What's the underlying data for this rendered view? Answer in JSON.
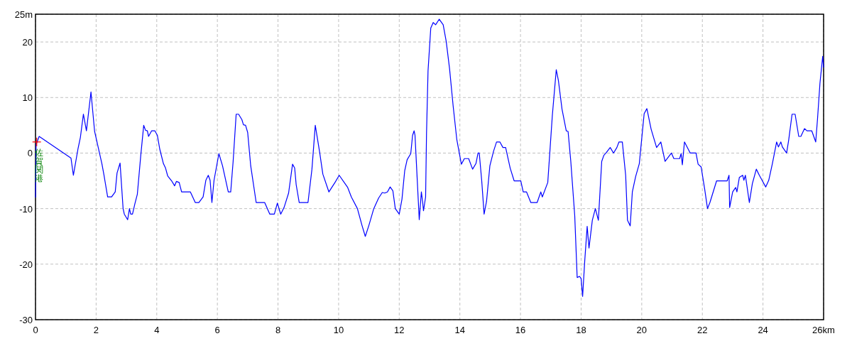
{
  "chart_data": {
    "type": "line",
    "x": [
      0,
      0.02,
      0.12,
      1.17,
      1.25,
      1.4,
      1.48,
      1.58,
      1.68,
      1.83,
      1.95,
      2.19,
      2.26,
      2.38,
      2.51,
      2.63,
      2.69,
      2.79,
      2.89,
      2.93,
      3.04,
      3.1,
      3.14,
      3.2,
      3.28,
      3.36,
      3.47,
      3.57,
      3.63,
      3.69,
      3.73,
      3.83,
      3.94,
      4.02,
      4.1,
      4.22,
      4.29,
      4.36,
      4.49,
      4.59,
      4.65,
      4.74,
      4.82,
      5.11,
      5.27,
      5.39,
      5.53,
      5.62,
      5.7,
      5.76,
      5.82,
      5.89,
      6.05,
      6.17,
      6.36,
      6.44,
      6.52,
      6.62,
      6.7,
      6.81,
      6.86,
      6.93,
      7.0,
      7.1,
      7.28,
      7.56,
      7.73,
      7.88,
      7.98,
      8.09,
      8.2,
      8.35,
      8.48,
      8.55,
      8.6,
      8.7,
      8.99,
      9.12,
      9.23,
      9.37,
      9.48,
      9.68,
      9.88,
      10.02,
      10.3,
      10.42,
      10.62,
      10.77,
      10.88,
      11.0,
      11.16,
      11.32,
      11.44,
      11.52,
      11.61,
      11.7,
      11.79,
      11.87,
      12.0,
      12.09,
      12.18,
      12.26,
      12.38,
      12.44,
      12.49,
      12.52,
      12.59,
      12.66,
      12.73,
      12.77,
      12.8,
      12.87,
      12.9,
      12.95,
      13.04,
      13.12,
      13.2,
      13.32,
      13.45,
      13.55,
      13.66,
      13.78,
      13.9,
      14.05,
      14.15,
      14.29,
      14.42,
      14.53,
      14.6,
      14.64,
      14.72,
      14.8,
      14.88,
      14.99,
      15.11,
      15.21,
      15.32,
      15.42,
      15.51,
      15.66,
      15.79,
      16.01,
      16.09,
      16.2,
      16.34,
      16.55,
      16.67,
      16.72,
      16.9,
      16.98,
      17.05,
      17.18,
      17.25,
      17.37,
      17.51,
      17.57,
      17.66,
      17.79,
      17.87,
      17.95,
      18.0,
      18.05,
      18.12,
      18.2,
      18.26,
      18.37,
      18.47,
      18.57,
      18.68,
      18.75,
      18.82,
      18.96,
      19.07,
      19.18,
      19.25,
      19.36,
      19.47,
      19.53,
      19.62,
      19.69,
      19.8,
      19.92,
      20.08,
      20.17,
      20.31,
      20.49,
      20.63,
      20.77,
      20.98,
      21.06,
      21.25,
      21.3,
      21.34,
      21.41,
      21.6,
      21.79,
      21.86,
      21.96,
      22.08,
      22.17,
      22.25,
      22.47,
      22.82,
      22.88,
      22.9,
      23.0,
      23.1,
      23.14,
      23.22,
      23.33,
      23.37,
      23.42,
      23.55,
      23.65,
      23.78,
      23.88,
      24.09,
      24.19,
      24.31,
      24.45,
      24.51,
      24.59,
      24.64,
      24.78,
      24.85,
      24.96,
      25.06,
      25.18,
      25.25,
      25.37,
      25.45,
      25.61,
      25.74,
      25.8,
      25.88,
      25.97,
      26.0
    ],
    "series": [
      {
        "color": "#0000ff",
        "values": [
          -8,
          1.5,
          3,
          -0.9,
          -4,
          0.7,
          2.8,
          7,
          4,
          11,
          3.9,
          -1.9,
          -4,
          -7.9,
          -7.9,
          -7,
          -3.6,
          -1.8,
          -10,
          -11,
          -12,
          -10,
          -11,
          -11,
          -9.1,
          -7.4,
          -0.6,
          5,
          4.1,
          4,
          3,
          4,
          4,
          3.2,
          0.7,
          -1.9,
          -2.7,
          -4.1,
          -5,
          -5.9,
          -5.1,
          -5.3,
          -7,
          -7,
          -8.9,
          -8.9,
          -7.9,
          -4.9,
          -4,
          -4.9,
          -8.9,
          -4.9,
          -0.1,
          -2.3,
          -7,
          -7,
          -1.5,
          7,
          7,
          6,
          5.1,
          5,
          3.7,
          -2.3,
          -8.9,
          -8.9,
          -11,
          -11,
          -9,
          -11,
          -9.8,
          -7.2,
          -2,
          -2.7,
          -5.7,
          -8.9,
          -8.9,
          -2.9,
          5,
          0.3,
          -3.8,
          -7,
          -5.3,
          -4,
          -6.2,
          -7.9,
          -10,
          -13,
          -15,
          -13,
          -10,
          -8.1,
          -7.1,
          -7.2,
          -7,
          -6.1,
          -6.8,
          -10,
          -11,
          -8.3,
          -3.2,
          -1.2,
          -0.1,
          3.2,
          4,
          3.2,
          -4.4,
          -12,
          -7,
          -8.7,
          -10.4,
          -7.9,
          3.5,
          14.8,
          22.5,
          23.5,
          23.1,
          24.1,
          23.1,
          20.1,
          15.2,
          8.4,
          2.4,
          -2,
          -1,
          -1,
          -2.9,
          -1.9,
          0,
          0,
          -4.9,
          -11,
          -8.7,
          -2.3,
          0.3,
          2,
          2,
          1,
          1,
          -2.7,
          -5,
          -5,
          -7,
          -7,
          -8.9,
          -8.9,
          -7,
          -7.9,
          -5.3,
          1.1,
          6.7,
          15,
          13.1,
          7.9,
          4,
          3.9,
          -1.5,
          -11.3,
          -22.4,
          -22.2,
          -22.6,
          -25.8,
          -19.4,
          -13.2,
          -17.1,
          -12.1,
          -10,
          -12.1,
          -1.5,
          -0.4,
          0,
          1,
          0,
          1,
          2,
          2,
          -4,
          -12.1,
          -13.1,
          -7,
          -4.2,
          -1.9,
          7.1,
          8,
          4.3,
          1,
          2,
          -1.5,
          0,
          -1,
          -1,
          -0.1,
          -2.1,
          2,
          0,
          0,
          -2,
          -2.5,
          -6.6,
          -10,
          -8.9,
          -5,
          -5,
          -4,
          -9.8,
          -7,
          -6.2,
          -7,
          -4.4,
          -4,
          -4.9,
          -4,
          -8.9,
          -5.5,
          -2.9,
          -4,
          -6.1,
          -4.9,
          -1.9,
          2,
          1.1,
          2,
          1.1,
          0,
          2.4,
          7,
          7,
          3,
          3,
          4.4,
          4,
          4,
          2,
          6.2,
          12.6,
          17.4,
          15.4
        ]
      }
    ],
    "xlim": [
      0,
      26
    ],
    "xticks": [
      0,
      2,
      4,
      6,
      8,
      10,
      12,
      14,
      16,
      18,
      20,
      22,
      24,
      {
        "value": 26,
        "label": "26km"
      }
    ],
    "ylim": [
      -30,
      25
    ],
    "yticks": [
      -30,
      -20,
      -10,
      0,
      10,
      20,
      {
        "value": 25,
        "label": "25m"
      }
    ],
    "grid": true,
    "marker": "none",
    "line_style": "solid",
    "annotations": [
      {
        "text": "佐賀関港",
        "x": 0.04,
        "y": 2
      }
    ]
  }
}
